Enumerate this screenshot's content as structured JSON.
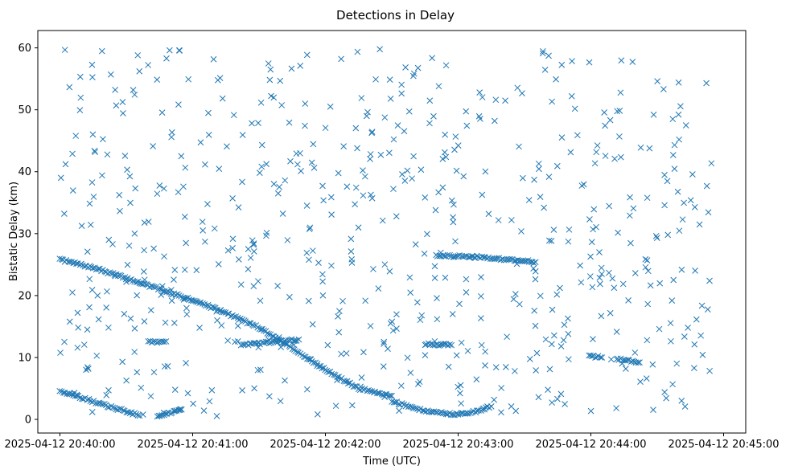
{
  "chart_data": {
    "type": "scatter",
    "title": "Detections in Delay",
    "xlabel": "Time (UTC)",
    "ylabel": "Bistatic Delay (km)",
    "marker": "x",
    "color": "#1f77b4",
    "grid": false,
    "legend": "none",
    "xlim": [
      "2025-04-12 20:39:50",
      "2025-04-12 20:45:10"
    ],
    "ylim": [
      -2.2,
      62.8
    ],
    "xticks": [
      "2025-04-12 20:40:00",
      "2025-04-12 20:41:00",
      "2025-04-12 20:42:00",
      "2025-04-12 20:43:00",
      "2025-04-12 20:44:00",
      "2025-04-12 20:45:00"
    ],
    "yticks": [
      0,
      10,
      20,
      30,
      40,
      50,
      60
    ],
    "tracks": [
      {
        "description": "descending curve",
        "x": [
          "2025-04-12 20:40:00",
          "2025-04-12 20:40:15",
          "2025-04-12 20:40:30",
          "2025-04-12 20:40:45",
          "2025-04-12 20:41:00",
          "2025-04-12 20:41:15",
          "2025-04-12 20:41:30",
          "2025-04-12 20:41:45",
          "2025-04-12 20:42:00",
          "2025-04-12 20:42:15",
          "2025-04-12 20:42:30"
        ],
        "y": [
          25.8,
          24.5,
          22.8,
          21.0,
          19.3,
          17.2,
          14.8,
          11.5,
          8.0,
          5.0,
          3.8
        ]
      },
      {
        "description": "low arc 1",
        "x": [
          "2025-04-12 20:40:00",
          "2025-04-12 20:40:10",
          "2025-04-12 20:40:20",
          "2025-04-12 20:40:30",
          "2025-04-12 20:40:36"
        ],
        "y": [
          4.6,
          3.5,
          2.3,
          1.3,
          0.6
        ]
      },
      {
        "description": "low arc 2",
        "x": [
          "2025-04-12 20:40:44",
          "2025-04-12 20:40:50",
          "2025-04-12 20:40:55"
        ],
        "y": [
          0.6,
          1.0,
          1.6
        ]
      },
      {
        "description": "low arc 3",
        "x": [
          "2025-04-12 20:42:30",
          "2025-04-12 20:42:40",
          "2025-04-12 20:42:50",
          "2025-04-12 20:43:00"
        ],
        "y": [
          3.0,
          1.8,
          1.1,
          0.8
        ]
      },
      {
        "description": "low arc 4",
        "x": [
          "2025-04-12 20:43:00",
          "2025-04-12 20:43:07",
          "2025-04-12 20:43:15"
        ],
        "y": [
          0.8,
          1.2,
          2.1
        ]
      },
      {
        "description": "flat segment",
        "x": [
          "2025-04-12 20:42:50",
          "2025-04-12 20:43:10",
          "2025-04-12 20:43:30",
          "2025-04-12 20:43:35"
        ],
        "y": [
          26.5,
          26.2,
          25.6,
          25.4
        ]
      },
      {
        "description": "flat segment",
        "x": [
          "2025-04-12 20:41:22",
          "2025-04-12 20:41:40",
          "2025-04-12 20:41:48"
        ],
        "y": [
          12.0,
          12.6,
          12.9
        ]
      },
      {
        "description": "flat segment",
        "x": [
          "2025-04-12 20:42:45",
          "2025-04-12 20:42:57"
        ],
        "y": [
          12.2,
          12.0
        ]
      },
      {
        "description": "flat segment",
        "x": [
          "2025-04-12 20:43:59",
          "2025-04-12 20:44:05"
        ],
        "y": [
          10.3,
          10.0
        ]
      },
      {
        "description": "flat segment",
        "x": [
          "2025-04-12 20:44:12",
          "2025-04-12 20:44:22"
        ],
        "y": [
          9.8,
          9.2
        ]
      },
      {
        "description": "flat segment",
        "x": [
          "2025-04-12 20:40:40",
          "2025-04-12 20:40:48"
        ],
        "y": [
          12.5,
          12.6
        ]
      }
    ],
    "clutter": {
      "description": "uniform random detections",
      "x_range": [
        "2025-04-12 20:40:00",
        "2025-04-12 20:44:55"
      ],
      "y_range": [
        0.5,
        59.8
      ],
      "count": 620,
      "seed": 7
    }
  }
}
